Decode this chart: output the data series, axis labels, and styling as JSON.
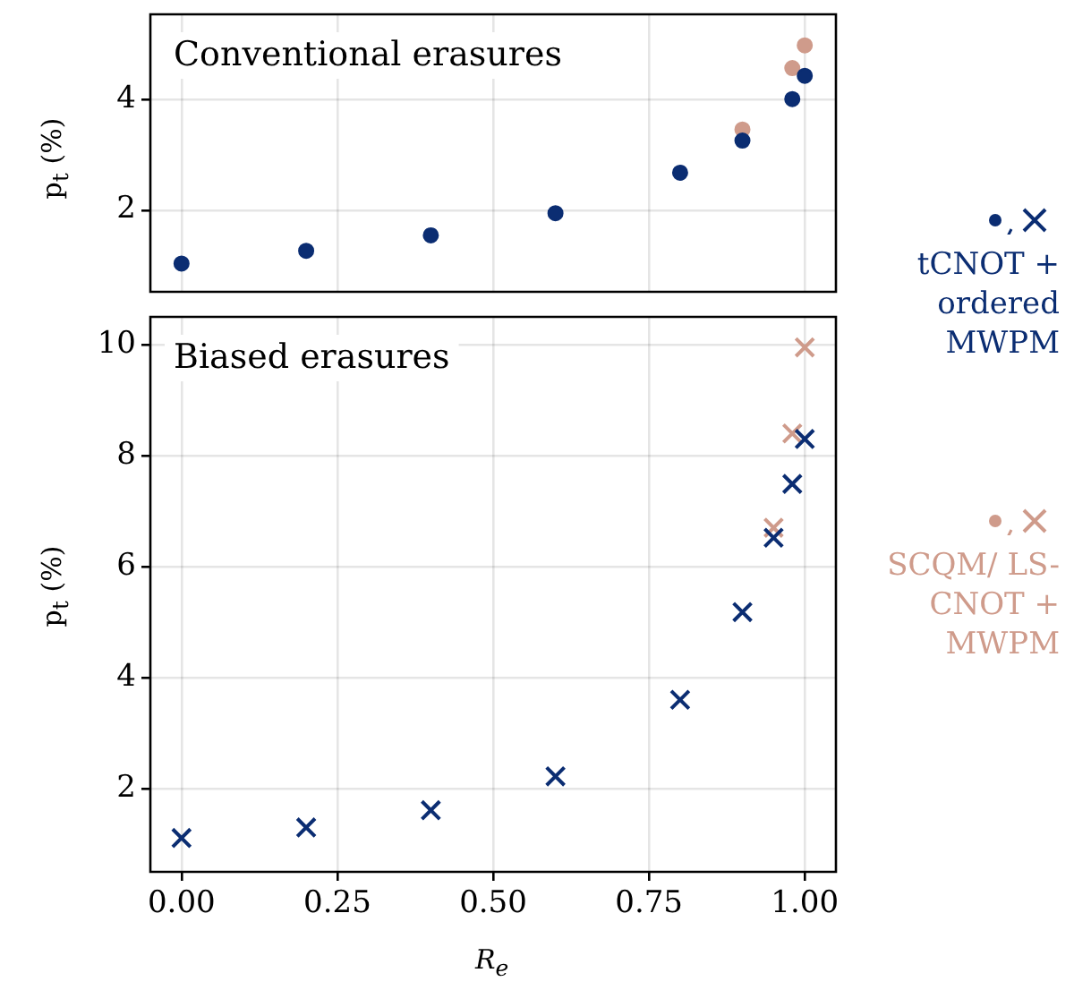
{
  "chart_data": [
    {
      "type": "scatter",
      "annotations": [
        "Conventional erasures"
      ],
      "ylabel": "p$_{t}$ (%)",
      "x": [
        0,
        0.2,
        0.4,
        0.6,
        0.8,
        0.9,
        0.95,
        0.98,
        1.0
      ],
      "xlim": [
        -0.05,
        1.05
      ],
      "xticks": [
        {
          "value": 0,
          "label": null
        },
        {
          "value": 0.25,
          "label": null
        },
        {
          "value": 0.5,
          "label": null
        },
        {
          "value": 0.75,
          "label": null
        },
        {
          "value": 1,
          "label": null
        }
      ],
      "ylim": [
        0.52,
        5.53
      ],
      "yticks": [
        2,
        4
      ],
      "tick_labels": "y",
      "marker": "circle",
      "grid": true,
      "series": [
        {
          "color": "#0b2d72",
          "values": [
            1.03,
            1.26,
            1.54,
            1.94,
            2.67,
            3.25,
            null,
            4.0,
            4.42
          ]
        },
        {
          "color": "#cf9b8b",
          "values": [
            null,
            null,
            null,
            null,
            null,
            3.45,
            null,
            4.56,
            4.97
          ]
        }
      ]
    },
    {
      "type": "scatter",
      "annotations": [
        "Biased erasures"
      ],
      "ylabel": "p$_{t}$ (%)",
      "xlabel": "R$_{e}$",
      "x": [
        0,
        0.2,
        0.4,
        0.6,
        0.8,
        0.9,
        0.95,
        0.98,
        1.0
      ],
      "xlim": [
        -0.05,
        1.05
      ],
      "xticks": [
        {
          "value": 0,
          "label": "0.00"
        },
        {
          "value": 0.25,
          "label": "0.25"
        },
        {
          "value": 0.5,
          "label": "0.50"
        },
        {
          "value": 0.75,
          "label": "0.75"
        },
        {
          "value": 1,
          "label": "1.00"
        }
      ],
      "ylim": [
        0.5,
        10.5
      ],
      "yticks": [
        2,
        4,
        6,
        8,
        10
      ],
      "marker": "cross",
      "grid": true,
      "legend": "right",
      "series": [
        {
          "name": "tCNOT + ordered MWPM",
          "color": "#0b2d72",
          "values": [
            1.11,
            1.3,
            1.61,
            2.22,
            3.6,
            5.18,
            6.52,
            7.49,
            8.3
          ]
        },
        {
          "name": "SCQM/ LS-CNOT + MWPM",
          "color": "#cf9b8b",
          "values": [
            null,
            null,
            null,
            null,
            null,
            null,
            6.7,
            8.4,
            9.95
          ]
        }
      ]
    }
  ]
}
